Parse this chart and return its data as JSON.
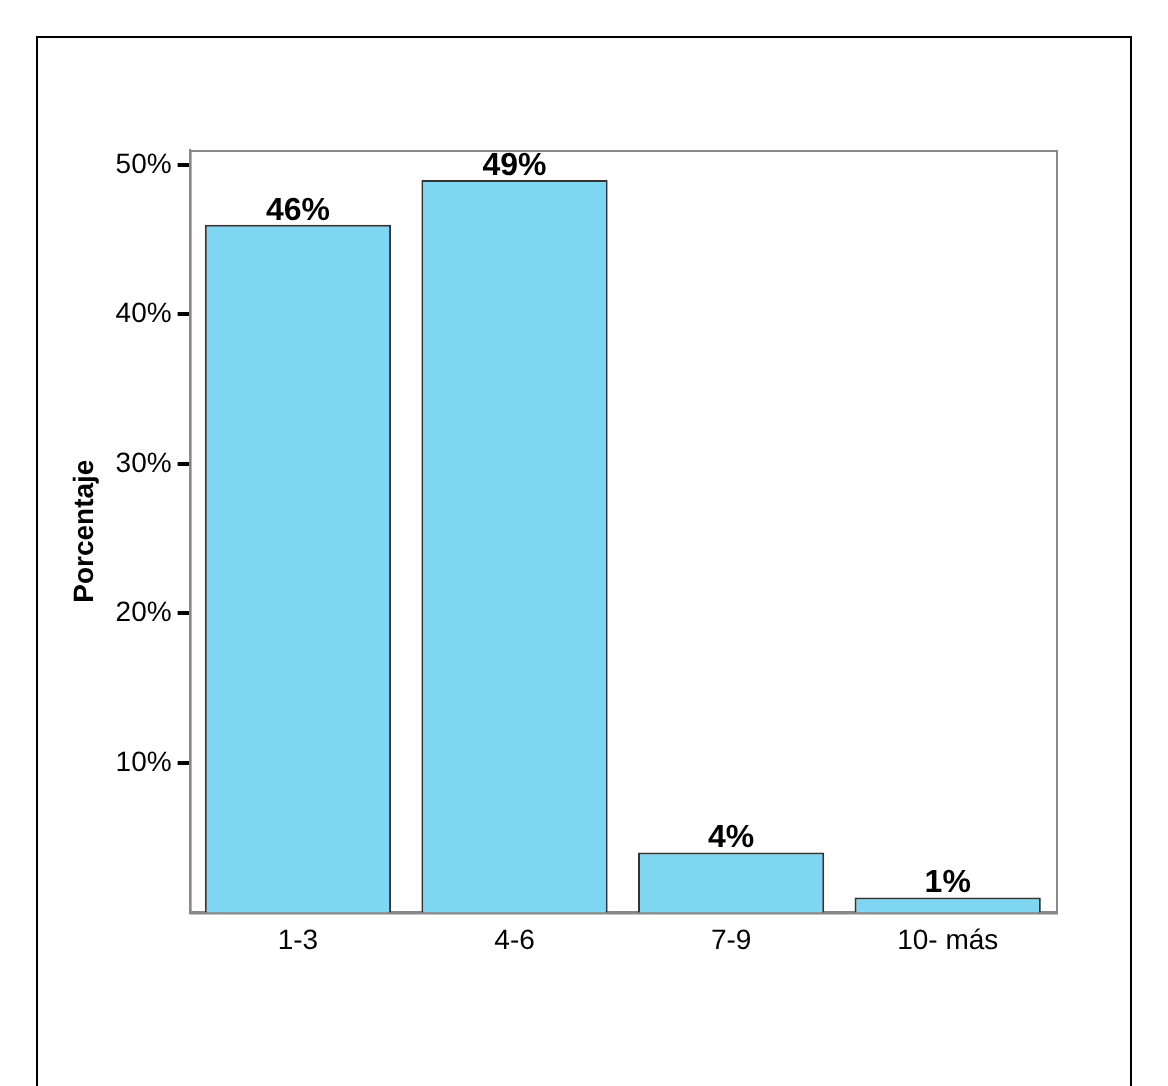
{
  "chart_data": {
    "type": "bar",
    "ylabel": "Porcentaje",
    "categories": [
      "1-3",
      "4-6",
      "7-9",
      "10- más"
    ],
    "values": [
      46,
      49,
      4,
      1
    ],
    "value_labels": [
      "46%",
      "49%",
      "4%",
      "1%"
    ],
    "color": "#7fd6f2",
    "ylim": [
      0,
      51
    ],
    "yticks": [
      {
        "value": 10,
        "label": "10%"
      },
      {
        "value": 20,
        "label": "20%"
      },
      {
        "value": 30,
        "label": "30%"
      },
      {
        "value": 40,
        "label": "40%"
      },
      {
        "value": 50,
        "label": "50%"
      }
    ],
    "grid": false,
    "legend": false
  }
}
